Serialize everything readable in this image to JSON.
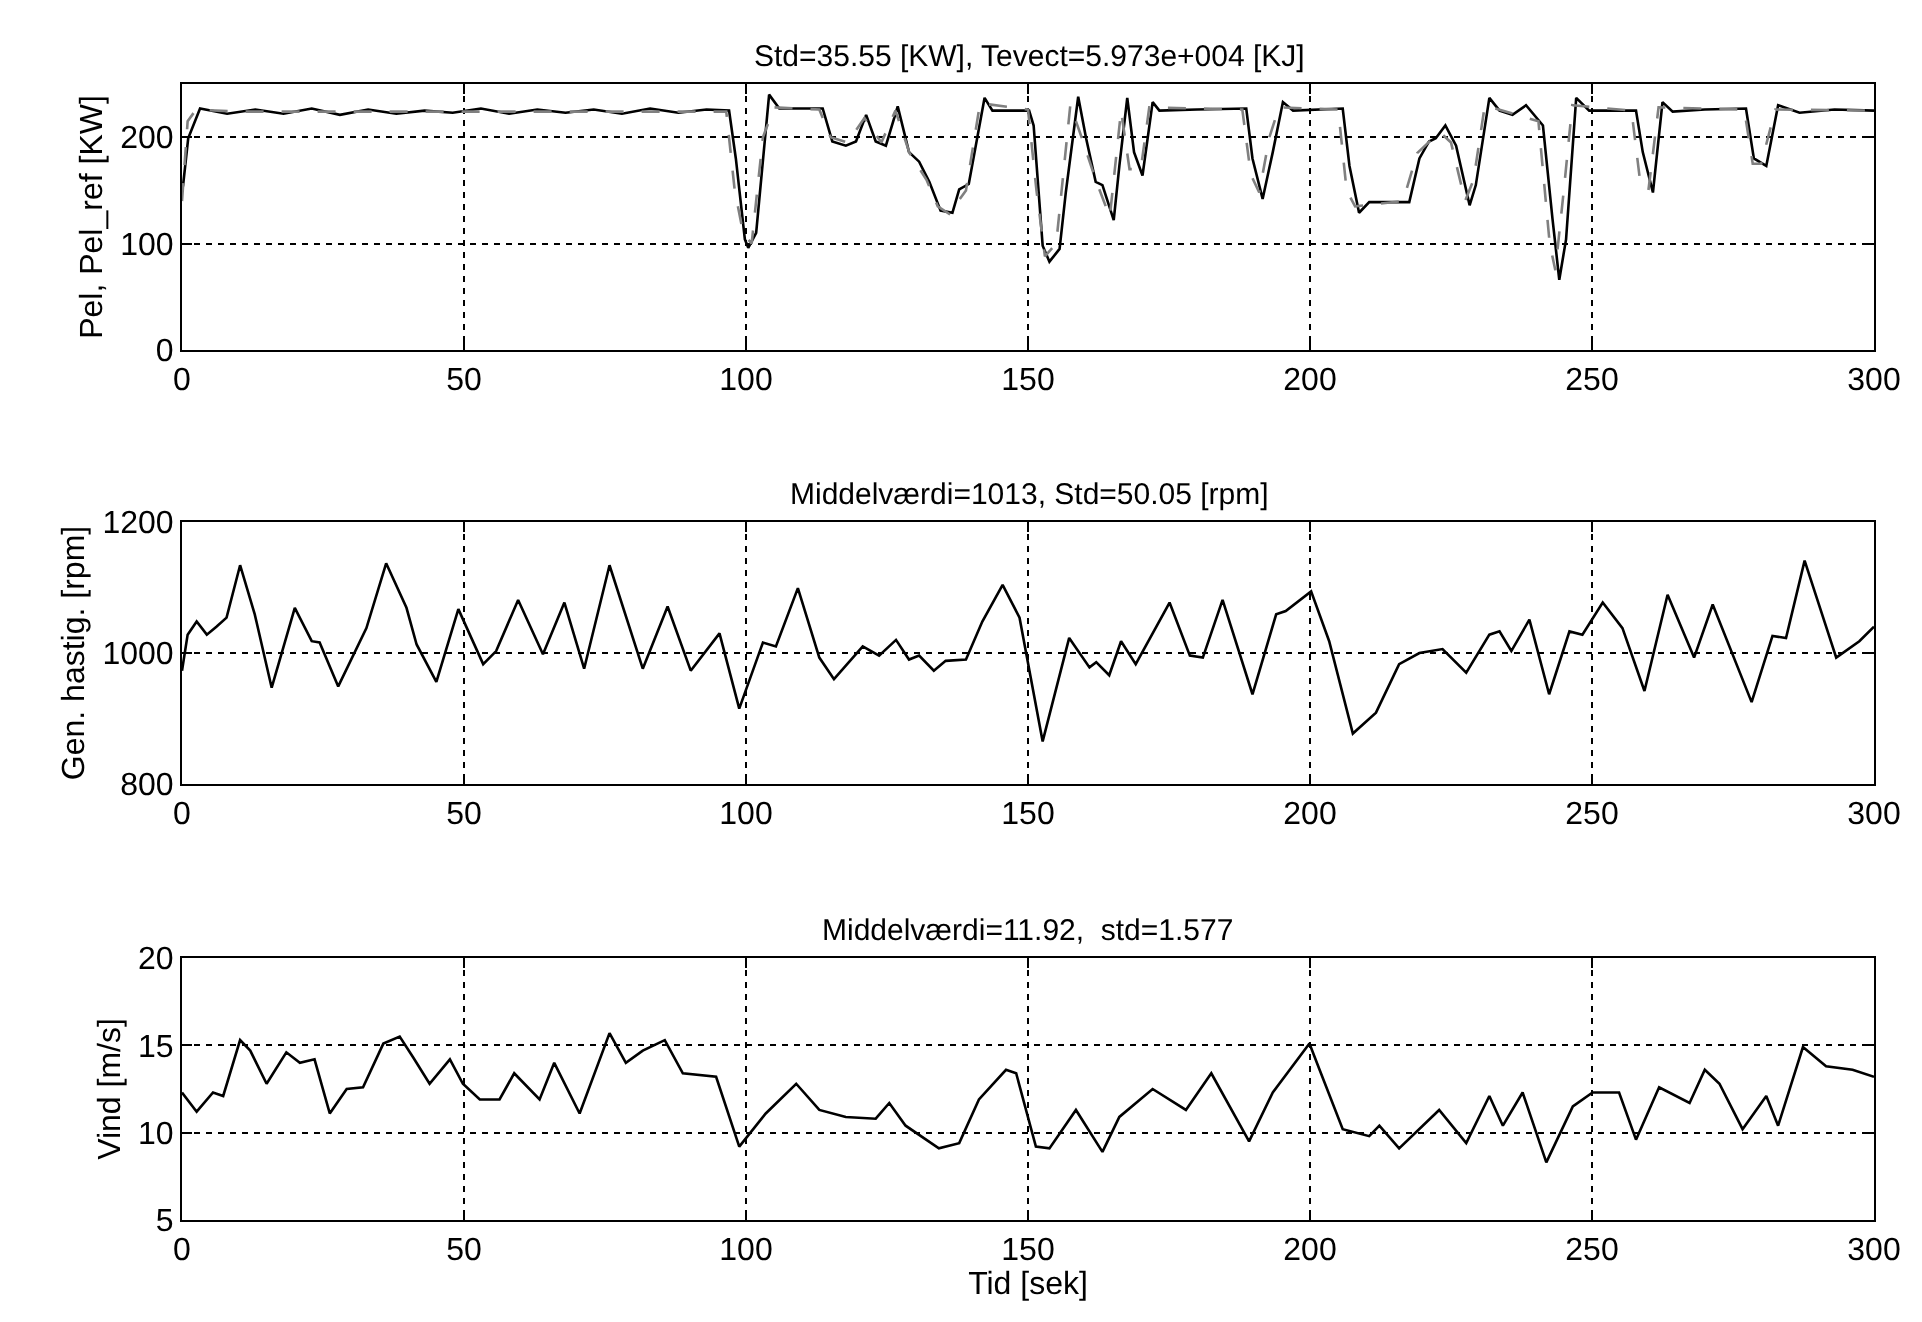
{
  "chart_data": [
    {
      "type": "line",
      "title": "Std=35.55 [KW], Tevect=5.973e+004 [KJ]",
      "ylabel": "Pel, Pel_ref [KW]",
      "xlim": [
        0,
        300
      ],
      "xticks": [
        0,
        50,
        100,
        150,
        200,
        250,
        300
      ],
      "ylim": [
        0,
        250
      ],
      "yticks": [
        0,
        100,
        200
      ],
      "grid": true,
      "series": [
        {
          "color": "#000000",
          "line_style": "solid",
          "x": [
            0,
            0.2,
            1.1,
            3.2,
            8,
            13,
            18,
            23,
            28,
            33,
            38,
            43,
            48,
            53,
            58,
            63,
            68,
            73,
            78,
            83,
            88,
            93,
            97,
            98.2,
            99.8,
            100.4,
            101.8,
            104.1,
            105.9,
            113.6,
            115.3,
            117.7,
            119.5,
            121.3,
            123,
            124.8,
            126.9,
            128.9,
            130.7,
            132.5,
            134.5,
            136.6,
            137.8,
            139.5,
            142.3,
            143.7,
            150.2,
            151,
            152.6,
            153.8,
            155.6,
            156.7,
            158.9,
            160.3,
            162,
            163.2,
            165.2,
            166.2,
            167.6,
            168.8,
            170.3,
            172.1,
            173.3,
            180,
            188.7,
            189.8,
            191.6,
            193.4,
            195.2,
            197,
            205.8,
            207,
            208.7,
            210.5,
            217.6,
            219.4,
            221.1,
            222.3,
            224,
            225.9,
            228.3,
            229.4,
            231.8,
            233.6,
            235.9,
            238.3,
            241.3,
            243,
            244.2,
            245.4,
            247.2,
            249.5,
            257.8,
            259,
            260.8,
            262.5,
            264.3,
            270,
            277.3,
            278.7,
            280.9,
            283,
            286.8,
            293,
            300
          ],
          "values": [
            150,
            155,
            199,
            227,
            222,
            226,
            222,
            227,
            221,
            226,
            222,
            225,
            223,
            227,
            222,
            226,
            223,
            226,
            222,
            227,
            223,
            226,
            225,
            180,
            104,
            96,
            110,
            240,
            227,
            227,
            196,
            192,
            196,
            221,
            196,
            192,
            229,
            186,
            177,
            158,
            131,
            129,
            151,
            156,
            237,
            225,
            225,
            211,
            98,
            83,
            95,
            148,
            238,
            199,
            158,
            155,
            122,
            173,
            237,
            186,
            164,
            233,
            225,
            226,
            227,
            180,
            142,
            186,
            233,
            225,
            227,
            173,
            129,
            139,
            139,
            180,
            196,
            199,
            211,
            192,
            136,
            155,
            237,
            225,
            221,
            230,
            211,
            123,
            66,
            104,
            237,
            225,
            225,
            186,
            148,
            233,
            224,
            226,
            227,
            180,
            173,
            230,
            223,
            226,
            225
          ]
        },
        {
          "color": "#808080",
          "line_style": "dashed",
          "x": [
            0,
            1,
            2.5,
            10,
            20,
            30,
            40,
            50,
            60,
            70,
            80,
            90,
            96.5,
            98,
            99.5,
            101,
            103,
            105,
            113,
            115,
            118,
            121,
            124,
            126.5,
            129,
            132,
            134,
            136,
            139,
            141.5,
            150,
            151.5,
            153,
            155,
            157.5,
            159.5,
            162,
            164.5,
            166.5,
            168,
            170,
            171.5,
            188,
            189.5,
            191,
            192.8,
            194.5,
            205,
            206.5,
            208,
            216.5,
            219,
            223,
            225,
            227.5,
            229,
            231,
            240.5,
            242.5,
            243.5,
            245,
            246.5,
            257,
            258.5,
            260,
            261.8,
            277,
            278.5,
            280,
            282.5,
            300
          ],
          "values": [
            140,
            215,
            226,
            224,
            224,
            224,
            224,
            224,
            224,
            224,
            224,
            224,
            224,
            150,
            110,
            100,
            200,
            228,
            226,
            200,
            195,
            218,
            195,
            225,
            185,
            160,
            135,
            128,
            150,
            232,
            226,
            150,
            88,
            100,
            230,
            200,
            160,
            125,
            225,
            170,
            170,
            228,
            226,
            165,
            148,
            200,
            228,
            226,
            150,
            135,
            140,
            185,
            205,
            195,
            140,
            160,
            230,
            215,
            100,
            75,
            150,
            230,
            225,
            160,
            150,
            228,
            226,
            175,
            175,
            226,
            225
          ]
        }
      ]
    },
    {
      "type": "line",
      "title": "Middelværdi=1013, Std=50.05 [rpm]",
      "ylabel": "Gen. hastig. [rpm]",
      "xlim": [
        0,
        300
      ],
      "xticks": [
        0,
        50,
        100,
        150,
        200,
        250,
        300
      ],
      "ylim": [
        800,
        1200
      ],
      "yticks": [
        800,
        1000,
        1200
      ],
      "grid": true,
      "series": [
        {
          "color": "#000000",
          "line_style": "solid",
          "x": [
            0,
            1,
            2.6,
            4.4,
            6.1,
            7.9,
            10.3,
            12.9,
            15.9,
            20,
            23,
            24.4,
            27.7,
            32.7,
            36.2,
            39.8,
            41.6,
            45.1,
            49,
            53.4,
            55.7,
            59.6,
            64,
            67.8,
            71.3,
            75.8,
            81.7,
            86.1,
            90.2,
            95.3,
            98.8,
            103,
            105.3,
            109.2,
            113,
            115.6,
            120.7,
            123.6,
            126.6,
            128.9,
            130.7,
            133.3,
            135.4,
            139,
            141.9,
            145.5,
            148.5,
            152.6,
            157.3,
            160.9,
            162.1,
            164.4,
            166.5,
            169.1,
            175.1,
            178.7,
            181,
            184.5,
            189.8,
            194,
            195.7,
            200.2,
            203.4,
            207.6,
            211.7,
            215.8,
            219.4,
            223.5,
            227.7,
            231.8,
            233.6,
            235.7,
            238.9,
            242.4,
            246,
            248.3,
            251.9,
            255.4,
            259.3,
            263.4,
            268.1,
            271.4,
            278.3,
            282,
            284.4,
            287.7,
            293.3,
            297.4,
            300
          ],
          "values": [
            973,
            1028,
            1048,
            1028,
            1040,
            1054,
            1134,
            1059,
            947,
            1069,
            1018,
            1016,
            949,
            1038,
            1137,
            1069,
            1013,
            956,
            1067,
            983,
            1003,
            1081,
            998,
            1077,
            976,
            1134,
            976,
            1071,
            973,
            1030,
            915,
            1016,
            1010,
            1099,
            993,
            960,
            1010,
            996,
            1020,
            990,
            996,
            973,
            988,
            990,
            1048,
            1104,
            1054,
            865,
            1023,
            978,
            986,
            966,
            1018,
            983,
            1077,
            996,
            993,
            1081,
            937,
            1059,
            1064,
            1094,
            1018,
            877,
            909,
            983,
            1000,
            1006,
            970,
            1028,
            1033,
            1003,
            1051,
            937,
            1033,
            1028,
            1077,
            1038,
            942,
            1089,
            993,
            1074,
            925,
            1026,
            1023,
            1141,
            993,
            1018,
            1040
          ]
        }
      ]
    },
    {
      "type": "line",
      "title": "Middelværdi=11.92,  std=1.577",
      "xlabel": "Tid [sek]",
      "ylabel": "Vind [m/s]",
      "xlim": [
        0,
        300
      ],
      "xticks": [
        0,
        50,
        100,
        150,
        200,
        250,
        300
      ],
      "ylim": [
        5,
        20
      ],
      "yticks": [
        5,
        10,
        15,
        20
      ],
      "grid": true,
      "series": [
        {
          "color": "#000000",
          "line_style": "solid",
          "x": [
            0,
            2.6,
            5.5,
            7.3,
            10.3,
            12.1,
            15,
            18.5,
            20.9,
            23.5,
            26.2,
            29.2,
            32.1,
            35.7,
            38.6,
            41,
            43.9,
            47.5,
            49.8,
            52.8,
            56.3,
            58.9,
            63.4,
            66,
            70.5,
            75.8,
            78.7,
            81.7,
            85.6,
            88.8,
            94.7,
            98.8,
            103.5,
            108.9,
            113,
            117.7,
            123,
            125.4,
            128.3,
            134.2,
            137.8,
            141.3,
            146.1,
            147.9,
            151.4,
            153.8,
            158.5,
            163.2,
            166.2,
            172.1,
            178,
            182.5,
            189.2,
            193.4,
            199.9,
            201.7,
            205.8,
            210.5,
            212.3,
            215.8,
            222.9,
            227.7,
            231.8,
            234.2,
            237.7,
            241.9,
            246.6,
            250.1,
            254.8,
            257.8,
            261.9,
            267.3,
            270,
            272.6,
            276.7,
            280.9,
            283,
            287.4,
            291.5,
            296.2,
            300
          ],
          "values": [
            12.3,
            11.2,
            12.3,
            12.1,
            15.3,
            14.7,
            12.8,
            14.6,
            14.0,
            14.2,
            11.1,
            12.5,
            12.6,
            15.1,
            15.5,
            14.3,
            12.8,
            14.2,
            12.8,
            11.9,
            11.9,
            13.4,
            11.9,
            14.0,
            11.1,
            15.7,
            14.0,
            14.7,
            15.3,
            13.4,
            13.2,
            9.2,
            11.1,
            12.8,
            11.3,
            10.9,
            10.8,
            11.7,
            10.4,
            9.1,
            9.4,
            11.9,
            13.6,
            13.4,
            9.2,
            9.1,
            11.3,
            8.9,
            10.9,
            12.5,
            11.3,
            13.4,
            9.5,
            12.3,
            15.1,
            13.6,
            10.2,
            9.8,
            10.4,
            9.1,
            11.3,
            9.4,
            12.1,
            10.4,
            12.3,
            8.3,
            11.5,
            12.3,
            12.3,
            9.6,
            12.6,
            11.7,
            13.6,
            12.8,
            10.2,
            12.1,
            10.4,
            14.9,
            13.8,
            13.6,
            13.2
          ]
        }
      ]
    }
  ]
}
